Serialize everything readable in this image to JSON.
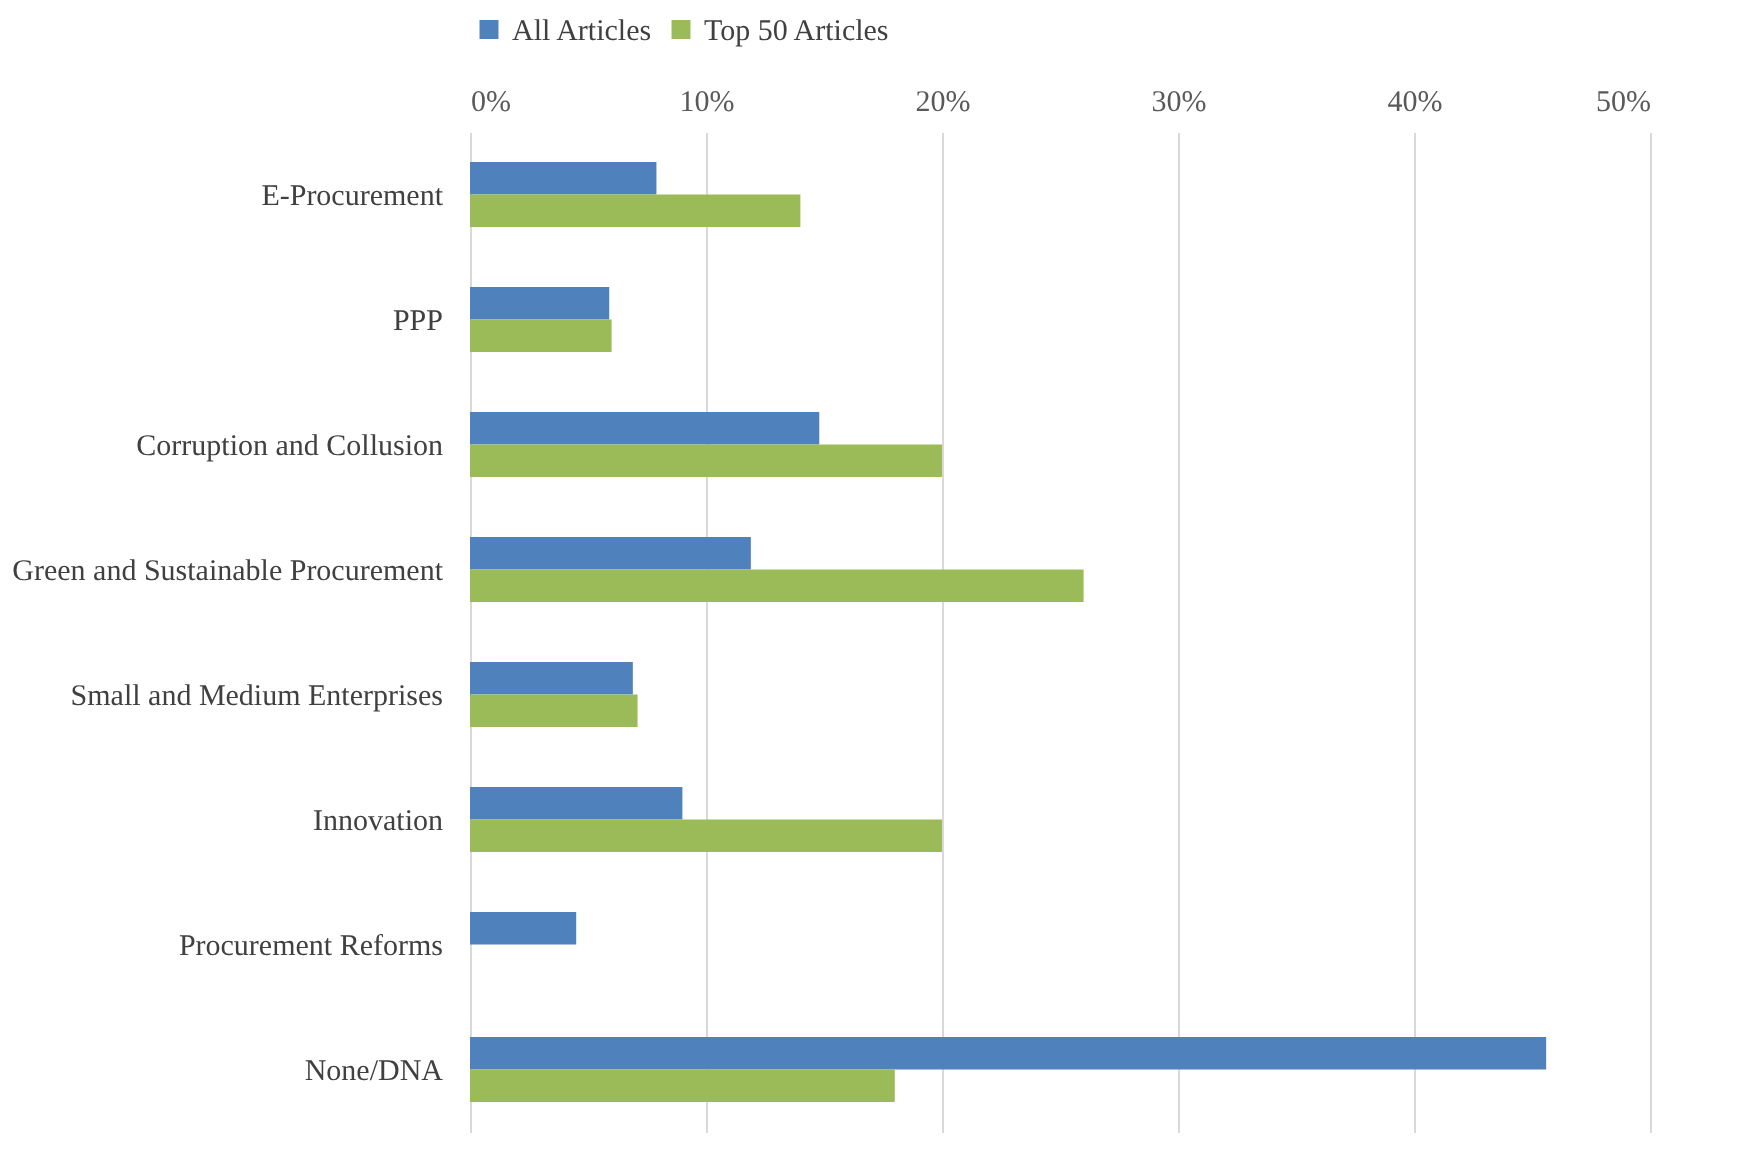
{
  "chart_data": {
    "type": "bar",
    "orientation": "horizontal",
    "categories": [
      "E-Procurement",
      "PPP",
      "Corruption and Collusion",
      "Green and Sustainable Procurement",
      "Small and Medium Enterprises",
      "Innovation",
      "Procurement Reforms",
      "None/DNA"
    ],
    "series": [
      {
        "name": "All Articles",
        "color": "#4f81bd",
        "values": [
          7.9,
          5.9,
          14.8,
          11.9,
          6.9,
          9.0,
          4.5,
          45.6
        ]
      },
      {
        "name": "Top 50 Articles",
        "color": "#9bbb59",
        "values": [
          14.0,
          6.0,
          20.0,
          26.0,
          7.1,
          20.0,
          0,
          18.0
        ]
      }
    ],
    "xlim": [
      0,
      50
    ],
    "xticks": [
      {
        "value": 0,
        "label": "0%"
      },
      {
        "value": 10,
        "label": "10%"
      },
      {
        "value": 20,
        "label": "20%"
      },
      {
        "value": 30,
        "label": "30%"
      },
      {
        "value": 40,
        "label": "40%"
      },
      {
        "value": 50,
        "label": "50%"
      }
    ],
    "grid": "x",
    "legend": "top"
  }
}
